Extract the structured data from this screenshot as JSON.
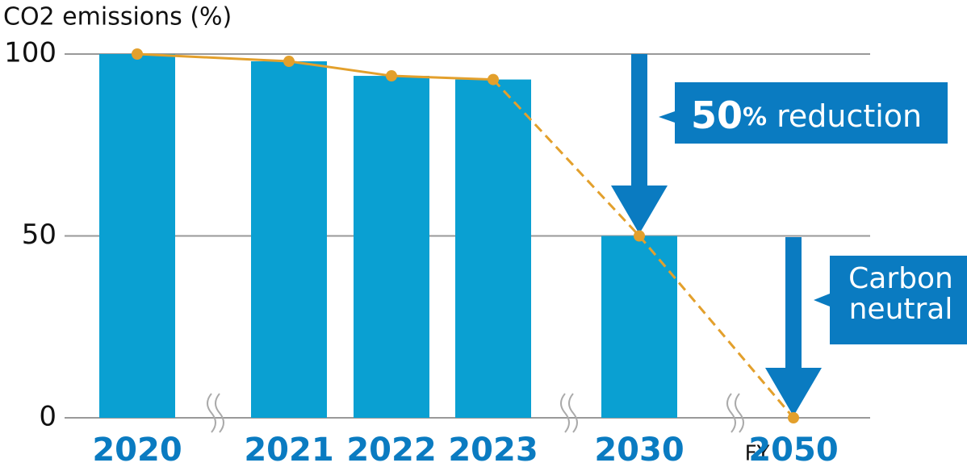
{
  "chart_data": {
    "type": "bar",
    "y_axis_label": "CO2 emissions (%)",
    "x_axis_label": "FY",
    "categories": [
      "2020",
      "2021",
      "2022",
      "2023",
      "2030",
      "2050"
    ],
    "series": [
      {
        "type": "bar",
        "color": "#0aa0d2",
        "values": [
          100,
          98,
          94,
          93,
          50,
          null
        ]
      },
      {
        "type": "line",
        "color": "#e3a02c",
        "values": [
          100,
          98,
          94,
          93,
          50,
          0
        ]
      }
    ],
    "ylim": [
      0,
      100
    ],
    "yticks": [
      0,
      50,
      100
    ],
    "grid": true,
    "annotations": [
      {
        "parts": [
          "50",
          "%",
          "reduction"
        ]
      },
      {
        "lines": [
          "Carbon",
          "neutral"
        ]
      }
    ]
  }
}
